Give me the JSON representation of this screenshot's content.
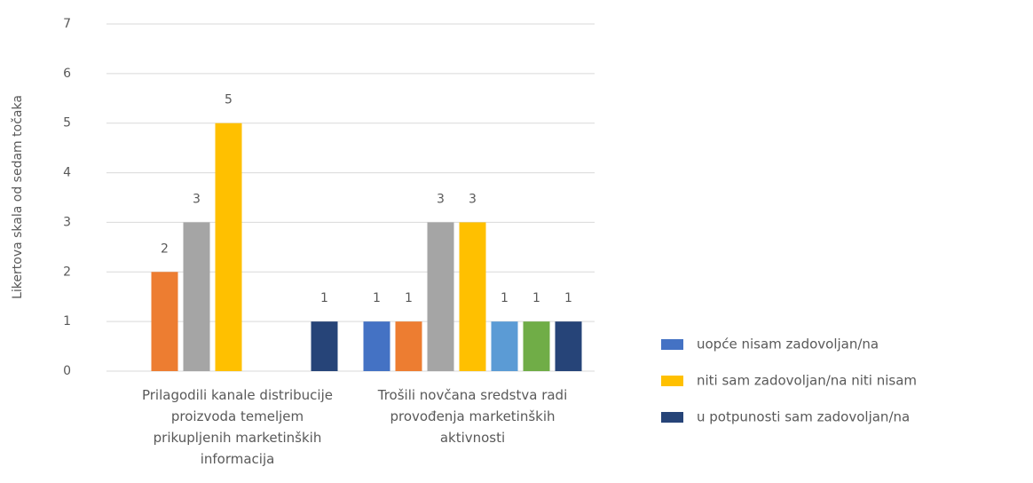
{
  "chart_data": {
    "type": "bar",
    "y_label": "Likertova skala od sedam točaka",
    "categories": [
      "Prilagodili kanale distribucije proizvoda temeljem prikupljenih marketinških informacija",
      "Trošili novčana sredstva radi provođenja marketinških aktivnosti"
    ],
    "series": [
      {
        "name": "uopće nisam zadovoljan/na",
        "color": "#4472c4",
        "values": [
          null,
          1
        ]
      },
      {
        "name": null,
        "color": "#ed7d31",
        "values": [
          2,
          1
        ]
      },
      {
        "name": null,
        "color": "#a5a5a5",
        "values": [
          3,
          3
        ]
      },
      {
        "name": "niti sam zadovoljan/na niti nisam",
        "color": "#ffc000",
        "values": [
          5,
          3
        ]
      },
      {
        "name": null,
        "color": "#5b9bd5",
        "values": [
          null,
          1
        ]
      },
      {
        "name": null,
        "color": "#70ad47",
        "values": [
          null,
          1
        ]
      },
      {
        "name": "u potpunosti sam zadovoljan/na",
        "color": "#264478",
        "values": [
          1,
          1
        ]
      }
    ],
    "ylim": [
      0,
      7
    ],
    "yticks": [
      0,
      1,
      2,
      3,
      4,
      5,
      6,
      7
    ],
    "grid": true,
    "legend": "right"
  }
}
